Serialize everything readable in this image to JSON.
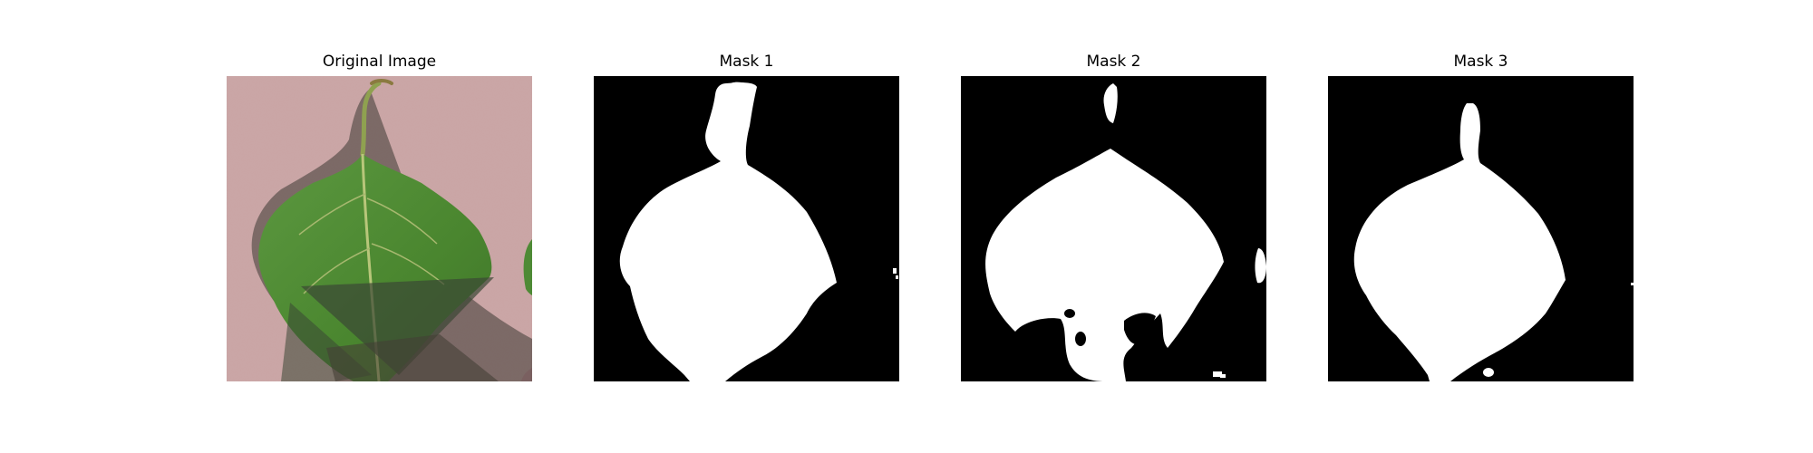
{
  "figure": {
    "panels": [
      {
        "title": "Original Image"
      },
      {
        "title": "Mask 1"
      },
      {
        "title": "Mask 2"
      },
      {
        "title": "Mask 3"
      }
    ]
  },
  "colors": {
    "background": "#ffffff",
    "mask_background": "#000000",
    "mask_foreground": "#ffffff",
    "surface": "#c9a3a3",
    "leaf": "#4e8a35",
    "shadow": "#3f3f3a"
  }
}
